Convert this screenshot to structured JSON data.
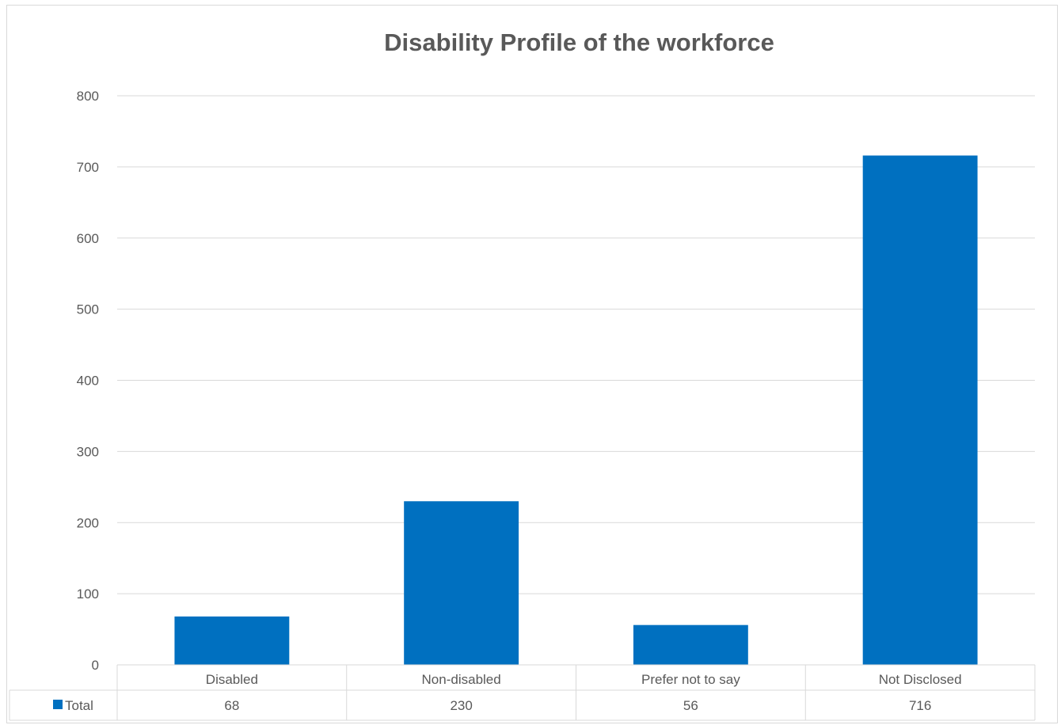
{
  "chart_data": {
    "type": "bar",
    "title": "Disability Profile of the workforce",
    "categories": [
      "Disabled",
      "Non-disabled",
      "Prefer not to say",
      "Not Disclosed"
    ],
    "series": [
      {
        "name": "Total",
        "values": [
          68,
          230,
          56,
          716
        ],
        "color": "#0070C0"
      }
    ],
    "ylim": [
      0,
      800
    ],
    "yticks": [
      0,
      100,
      200,
      300,
      400,
      500,
      600,
      700,
      800
    ],
    "grid": true,
    "legend": "data-table-left",
    "data_table": true
  }
}
